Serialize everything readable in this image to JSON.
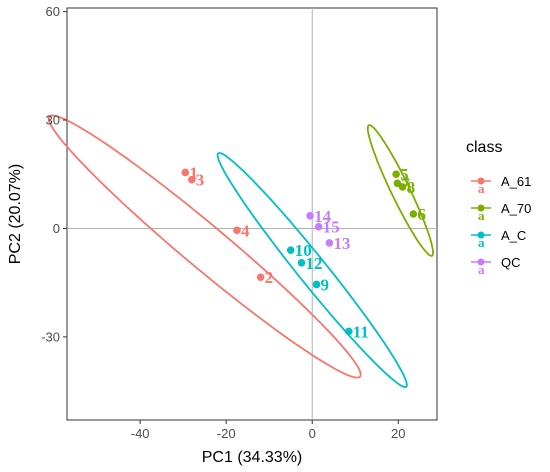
{
  "chart_data": {
    "type": "scatter",
    "title": "",
    "xlabel": "PC1 (34.33%)",
    "ylabel": "PC2 (20.07%)",
    "xlim": [
      -57,
      29
    ],
    "ylim": [
      -53,
      61
    ],
    "xticks": [
      -40,
      -20,
      0,
      20
    ],
    "yticks": [
      -30,
      0,
      30,
      60
    ],
    "xtick_labels": [
      "-40",
      "-20",
      "0",
      "20"
    ],
    "ytick_labels": [
      "-30",
      "0",
      "30",
      "60"
    ],
    "zero_lines": true,
    "grid": false,
    "legend": {
      "title": "class",
      "position": "right"
    },
    "series": [
      {
        "name": "A_61",
        "color": "#F8766D",
        "points": [
          {
            "label": "1",
            "x": -29.5,
            "y": 15.5
          },
          {
            "label": "3",
            "x": -28.0,
            "y": 13.5
          },
          {
            "label": "4",
            "x": -17.5,
            "y": -0.5
          },
          {
            "label": "2",
            "x": -12.0,
            "y": -13.5
          }
        ],
        "ellipse": {
          "cx": -25,
          "cy": -5,
          "rx": 51,
          "ry": 5.5,
          "angle_deg": -45
        }
      },
      {
        "name": "A_70",
        "color": "#7CAE00",
        "points": [
          {
            "label": "5",
            "x": 19.5,
            "y": 15.0
          },
          {
            "label": "7",
            "x": 19.8,
            "y": 12.5
          },
          {
            "label": "8",
            "x": 21.0,
            "y": 11.5
          },
          {
            "label": "6",
            "x": 23.5,
            "y": 4.0
          }
        ],
        "ellipse": {
          "cx": 20.5,
          "cy": 10.5,
          "rx": 19.5,
          "ry": 2.2,
          "angle_deg": -68
        }
      },
      {
        "name": "A_C",
        "color": "#00BFC4",
        "points": [
          {
            "label": "10",
            "x": -5.0,
            "y": -6.0
          },
          {
            "label": "12",
            "x": -2.5,
            "y": -9.5
          },
          {
            "label": "9",
            "x": 1.0,
            "y": -15.5
          },
          {
            "label": "11",
            "x": 8.5,
            "y": -28.5
          }
        ],
        "ellipse": {
          "cx": 0,
          "cy": -11.5,
          "rx": 39,
          "ry": 3.5,
          "angle_deg": -56
        }
      },
      {
        "name": "QC",
        "color": "#C77CFF",
        "points": [
          {
            "label": "14",
            "x": -0.5,
            "y": 3.5
          },
          {
            "label": "15",
            "x": 1.5,
            "y": 0.5
          },
          {
            "label": "13",
            "x": 4.0,
            "y": -4.0
          }
        ],
        "ellipse": null
      }
    ]
  }
}
